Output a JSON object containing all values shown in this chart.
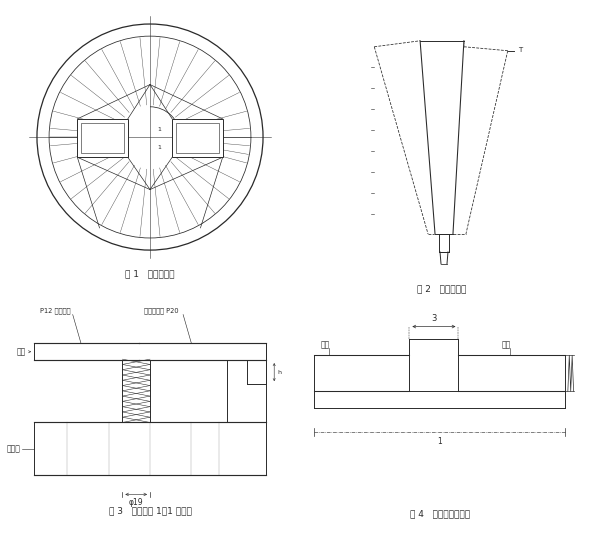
{
  "bg_color": "#ffffff",
  "line_color": "#2a2a2a",
  "fig1_label": "图 1   平面布置图",
  "fig2_label": "图 2   衬板示意图",
  "fig3_label": "图 3   螺栓固定 1－1 剖面图",
  "fig4_label": "图 4   衬板横向连接图"
}
